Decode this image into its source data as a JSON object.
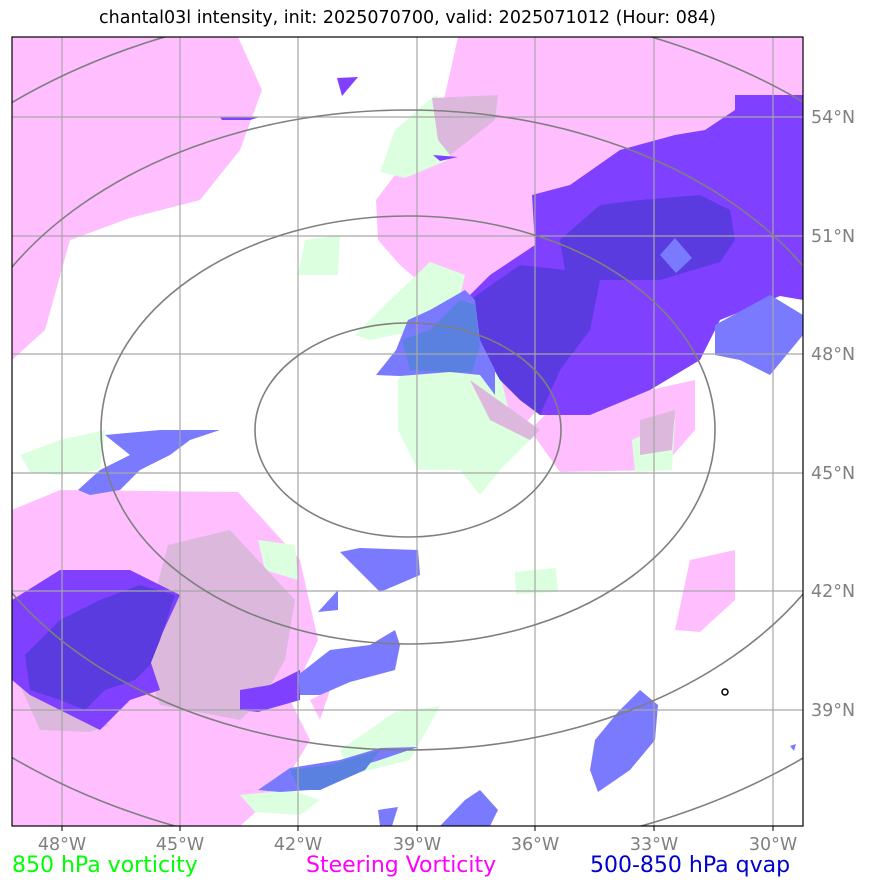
{
  "title": "chantal03l intensity, init: 2025070700, valid: 2025071012 (Hour: 084)",
  "lon_ticks": [
    "48°W",
    "45°W",
    "42°W",
    "39°W",
    "36°W",
    "33°W",
    "30°W"
  ],
  "lat_ticks": [
    "54°N",
    "51°N",
    "48°N",
    "45°N",
    "42°N",
    "39°N"
  ],
  "legend": {
    "vort850": "850 hPa vorticity",
    "steering": "Steering Vorticity",
    "qvap": "500-850 hPa qvap"
  },
  "colors": {
    "vort850": "#00ff00",
    "steering": "#ff00ff",
    "qvap": "#0000cc",
    "fill_pink": "#ffbfff",
    "fill_green": "#dcffe0",
    "fill_purple": "#8040ff",
    "fill_blue": "#7a7aff"
  }
}
